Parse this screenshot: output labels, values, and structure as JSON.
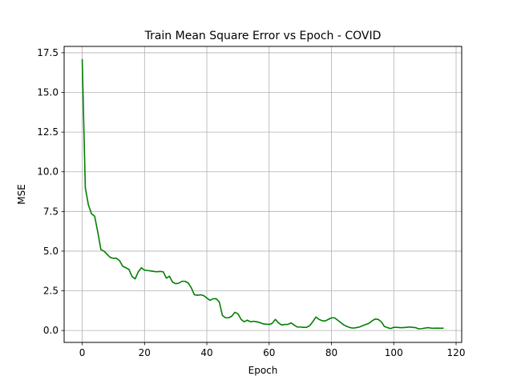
{
  "chart_data": {
    "type": "line",
    "title": "Train Mean Square Error vs Epoch - COVID",
    "xlabel": "Epoch",
    "ylabel": "MSE",
    "xlim": [
      -5.8,
      121.8
    ],
    "ylim": [
      -0.75,
      17.9
    ],
    "xticks": [
      0,
      20,
      40,
      60,
      80,
      100,
      120
    ],
    "yticks": [
      0.0,
      2.5,
      5.0,
      7.5,
      10.0,
      12.5,
      15.0,
      17.5
    ],
    "xtick_labels": [
      "0",
      "20",
      "40",
      "60",
      "80",
      "100",
      "120"
    ],
    "ytick_labels": [
      "0.0",
      "2.5",
      "5.0",
      "7.5",
      "10.0",
      "12.5",
      "15.0",
      "17.5"
    ],
    "grid": true,
    "series": [
      {
        "color": "#008000",
        "x": [
          0,
          1,
          2,
          3,
          4,
          5,
          6,
          7,
          8,
          9,
          10,
          11,
          12,
          13,
          14,
          15,
          16,
          17,
          18,
          19,
          20,
          21,
          22,
          23,
          24,
          25,
          26,
          27,
          28,
          29,
          30,
          31,
          32,
          33,
          34,
          35,
          36,
          37,
          38,
          39,
          40,
          41,
          42,
          43,
          44,
          45,
          46,
          47,
          48,
          49,
          50,
          51,
          52,
          53,
          54,
          55,
          56,
          57,
          58,
          59,
          60,
          61,
          62,
          63,
          64,
          65,
          66,
          67,
          68,
          69,
          70,
          71,
          72,
          73,
          74,
          75,
          76,
          77,
          78,
          79,
          80,
          81,
          82,
          83,
          84,
          85,
          86,
          87,
          88,
          89,
          90,
          91,
          92,
          93,
          94,
          95,
          96,
          97,
          98,
          99,
          100,
          101,
          102,
          103,
          104,
          105,
          106,
          107,
          108,
          109,
          110,
          111,
          112,
          113,
          114,
          115,
          116
        ],
        "y": [
          17.1,
          9.0,
          7.9,
          7.35,
          7.2,
          6.2,
          5.1,
          5.0,
          4.8,
          4.6,
          4.55,
          4.55,
          4.4,
          4.05,
          3.95,
          3.85,
          3.4,
          3.25,
          3.7,
          3.95,
          3.8,
          3.78,
          3.75,
          3.72,
          3.7,
          3.72,
          3.7,
          3.3,
          3.42,
          3.05,
          2.95,
          2.98,
          3.1,
          3.1,
          3.0,
          2.7,
          2.25,
          2.22,
          2.25,
          2.2,
          2.05,
          1.9,
          2.0,
          2.0,
          1.8,
          0.95,
          0.8,
          0.8,
          0.9,
          1.15,
          1.05,
          0.7,
          0.55,
          0.65,
          0.55,
          0.58,
          0.55,
          0.5,
          0.42,
          0.4,
          0.38,
          0.45,
          0.7,
          0.48,
          0.35,
          0.38,
          0.38,
          0.48,
          0.35,
          0.22,
          0.22,
          0.2,
          0.2,
          0.3,
          0.55,
          0.85,
          0.7,
          0.62,
          0.6,
          0.7,
          0.8,
          0.8,
          0.65,
          0.5,
          0.35,
          0.25,
          0.18,
          0.15,
          0.18,
          0.22,
          0.3,
          0.38,
          0.45,
          0.6,
          0.72,
          0.7,
          0.55,
          0.25,
          0.18,
          0.12,
          0.2,
          0.2,
          0.18,
          0.18,
          0.2,
          0.22,
          0.2,
          0.18,
          0.1,
          0.12,
          0.15,
          0.18,
          0.15,
          0.14,
          0.15,
          0.14,
          0.15
        ]
      }
    ]
  }
}
